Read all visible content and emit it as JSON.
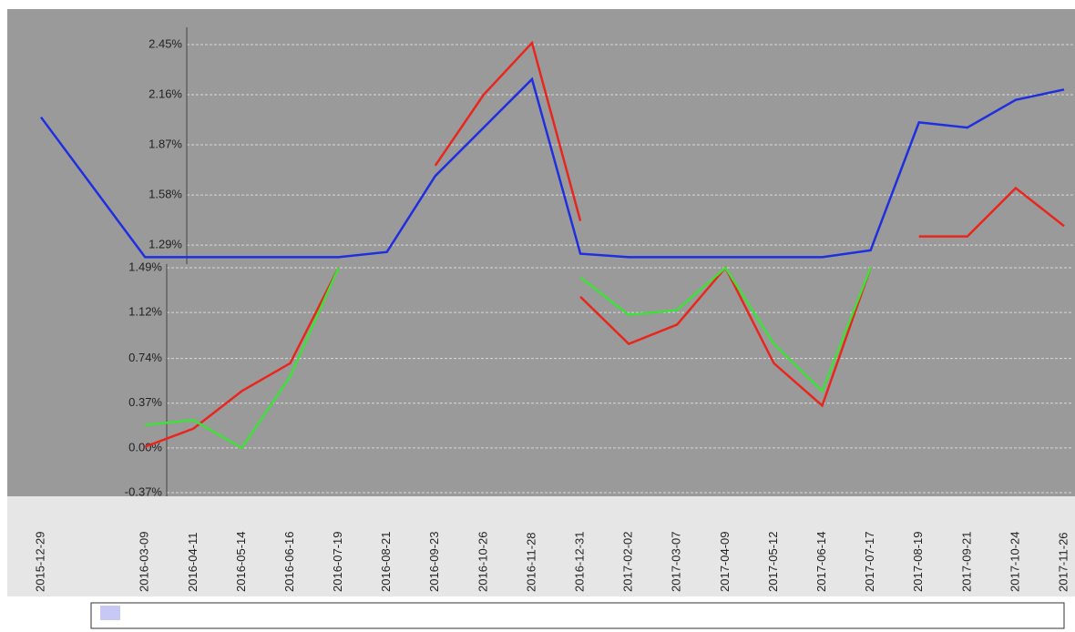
{
  "chart_data": [
    {
      "type": "line",
      "x": [
        "2015-12-29",
        "2016-03-09",
        "2016-04-11",
        "2016-05-14",
        "2016-06-16",
        "2016-07-19",
        "2016-08-21",
        "2016-09-23",
        "2016-10-26",
        "2016-11-28",
        "2016-12-31",
        "2017-02-02",
        "2017-03-07",
        "2017-04-09",
        "2017-05-12",
        "2017-06-14",
        "2017-07-17",
        "2017-08-19",
        "2017-09-21",
        "2017-10-24",
        "2017-11-26"
      ],
      "series": [
        {
          "color": "#1f2fe0",
          "values": [
            2.03,
            1.22,
            1.22,
            1.22,
            1.22,
            1.22,
            1.25,
            1.69,
            1.97,
            2.25,
            1.24,
            1.22,
            1.22,
            1.22,
            1.22,
            1.22,
            1.26,
            2.0,
            1.97,
            2.13,
            2.19
          ]
        },
        {
          "color": "#e8261e",
          "values": [
            null,
            null,
            null,
            null,
            null,
            null,
            null,
            1.75,
            2.16,
            2.46,
            1.43,
            null,
            null,
            null,
            null,
            null,
            null,
            1.34,
            1.34,
            1.62,
            1.4
          ]
        }
      ],
      "ylim": [
        1.18,
        2.55
      ],
      "yticks": [
        {
          "value": 2.45,
          "label": "2.45%"
        },
        {
          "value": 2.16,
          "label": "2.16%"
        },
        {
          "value": 1.87,
          "label": "1.87%"
        },
        {
          "value": 1.58,
          "label": "1.58%"
        },
        {
          "value": 1.29,
          "label": "1.29%"
        }
      ],
      "grid": true
    },
    {
      "type": "line",
      "x": [
        "2015-12-29",
        "2016-03-09",
        "2016-04-11",
        "2016-05-14",
        "2016-06-16",
        "2016-07-19",
        "2016-08-21",
        "2016-09-23",
        "2016-10-26",
        "2016-11-28",
        "2016-12-31",
        "2017-02-02",
        "2017-03-07",
        "2017-04-09",
        "2017-05-12",
        "2017-06-14",
        "2017-07-17",
        "2017-08-19",
        "2017-09-21",
        "2017-10-24",
        "2017-11-26"
      ],
      "series": [
        {
          "color": "#e8261e",
          "values": [
            null,
            0.01,
            0.16,
            0.47,
            0.7,
            1.49,
            null,
            null,
            null,
            null,
            1.25,
            0.86,
            1.02,
            1.49,
            0.7,
            0.35,
            1.49,
            null,
            null,
            null,
            null
          ]
        },
        {
          "color": "#3fe03a",
          "values": [
            null,
            0.19,
            0.23,
            0.0,
            0.59,
            1.49,
            null,
            null,
            null,
            null,
            1.41,
            1.1,
            1.14,
            1.49,
            0.86,
            0.47,
            1.49,
            null,
            null,
            null,
            null
          ]
        }
      ],
      "ylim": [
        -0.4,
        1.52
      ],
      "yticks": [
        {
          "value": 1.49,
          "label": "1.49%"
        },
        {
          "value": 1.12,
          "label": "1.12%"
        },
        {
          "value": 0.74,
          "label": "0.74%"
        },
        {
          "value": 0.37,
          "label": "0.37%"
        },
        {
          "value": 0,
          "label": "0.00%"
        },
        {
          "value": -0.37,
          "label": "-0.37%"
        }
      ],
      "grid": true
    }
  ]
}
